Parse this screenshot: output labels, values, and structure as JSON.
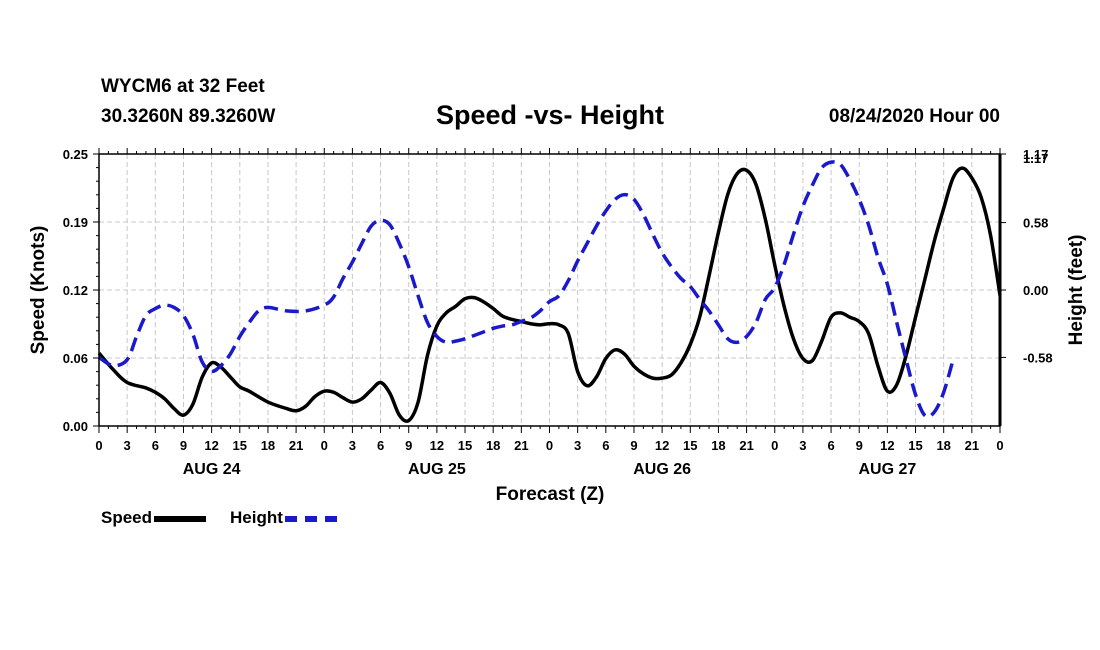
{
  "header": {
    "station": "WYCM6 at 32 Feet",
    "coords": "30.3260N 89.3260W",
    "title": "Speed -vs- Height",
    "datetime": "08/24/2020 Hour 00"
  },
  "chart_data": {
    "type": "line",
    "title": "Speed -vs- Height",
    "xlabel": "Forecast (Z)",
    "ylabel_left": "Speed (Knots)",
    "ylabel_right": "Height (feet)",
    "x_range_hours": [
      0,
      96
    ],
    "x_tick_labels": [
      "0",
      "3",
      "6",
      "9",
      "12",
      "15",
      "18",
      "21",
      "0",
      "3",
      "6",
      "9",
      "12",
      "15",
      "18",
      "21",
      "0",
      "3",
      "6",
      "9",
      "12",
      "15",
      "18",
      "21",
      "0",
      "3",
      "6",
      "9",
      "12",
      "15",
      "18",
      "21",
      "0"
    ],
    "day_labels": [
      {
        "hour": 12,
        "label": "AUG 24"
      },
      {
        "hour": 36,
        "label": "AUG 25"
      },
      {
        "hour": 60,
        "label": "AUG 26"
      },
      {
        "hour": 84,
        "label": "AUG 27"
      }
    ],
    "y_left": {
      "range": [
        0,
        0.25
      ],
      "ticks": [
        "0.00",
        "0.06",
        "0.12",
        "0.19",
        "0.25"
      ]
    },
    "y_right": {
      "range": [
        -1.17,
        1.17
      ],
      "ticks": [
        "-0.58",
        "0.00",
        "0.58",
        "1.17"
      ]
    },
    "grid": true,
    "series": [
      {
        "name": "Speed",
        "axis": "left",
        "color": "#000000",
        "dash": "solid",
        "points": [
          [
            0,
            0.067
          ],
          [
            1.5,
            0.052
          ],
          [
            3,
            0.04
          ],
          [
            5,
            0.035
          ],
          [
            6,
            0.031
          ],
          [
            7,
            0.025
          ],
          [
            8,
            0.016
          ],
          [
            9,
            0.01
          ],
          [
            10,
            0.02
          ],
          [
            11,
            0.045
          ],
          [
            12,
            0.058
          ],
          [
            13,
            0.054
          ],
          [
            14,
            0.045
          ],
          [
            15,
            0.036
          ],
          [
            16,
            0.032
          ],
          [
            18,
            0.022
          ],
          [
            20,
            0.016
          ],
          [
            21,
            0.014
          ],
          [
            22,
            0.018
          ],
          [
            23,
            0.027
          ],
          [
            24,
            0.032
          ],
          [
            25,
            0.031
          ],
          [
            26,
            0.026
          ],
          [
            27,
            0.022
          ],
          [
            28,
            0.025
          ],
          [
            29,
            0.033
          ],
          [
            30,
            0.04
          ],
          [
            31,
            0.03
          ],
          [
            32,
            0.01
          ],
          [
            33,
            0.005
          ],
          [
            34,
            0.022
          ],
          [
            35,
            0.065
          ],
          [
            36,
            0.092
          ],
          [
            37,
            0.104
          ],
          [
            38,
            0.11
          ],
          [
            39,
            0.117
          ],
          [
            40,
            0.118
          ],
          [
            41,
            0.114
          ],
          [
            42,
            0.108
          ],
          [
            43,
            0.101
          ],
          [
            44,
            0.098
          ],
          [
            45,
            0.096
          ],
          [
            46,
            0.094
          ],
          [
            47,
            0.093
          ],
          [
            48,
            0.094
          ],
          [
            49,
            0.093
          ],
          [
            50,
            0.085
          ],
          [
            51,
            0.05
          ],
          [
            52,
            0.037
          ],
          [
            53,
            0.045
          ],
          [
            54,
            0.062
          ],
          [
            55,
            0.07
          ],
          [
            56,
            0.066
          ],
          [
            57,
            0.055
          ],
          [
            58,
            0.048
          ],
          [
            59,
            0.044
          ],
          [
            60,
            0.044
          ],
          [
            61,
            0.047
          ],
          [
            62,
            0.058
          ],
          [
            63,
            0.075
          ],
          [
            64,
            0.1
          ],
          [
            65,
            0.138
          ],
          [
            66,
            0.178
          ],
          [
            67,
            0.213
          ],
          [
            68,
            0.232
          ],
          [
            69,
            0.235
          ],
          [
            70,
            0.222
          ],
          [
            71,
            0.19
          ],
          [
            72,
            0.148
          ],
          [
            73,
            0.11
          ],
          [
            74,
            0.08
          ],
          [
            75,
            0.062
          ],
          [
            76,
            0.06
          ],
          [
            77,
            0.078
          ],
          [
            78,
            0.1
          ],
          [
            79,
            0.104
          ],
          [
            80,
            0.1
          ],
          [
            81,
            0.096
          ],
          [
            82,
            0.085
          ],
          [
            83,
            0.055
          ],
          [
            84,
            0.032
          ],
          [
            85,
            0.038
          ],
          [
            86,
            0.065
          ],
          [
            87,
            0.1
          ],
          [
            88,
            0.135
          ],
          [
            89,
            0.17
          ],
          [
            90,
            0.2
          ],
          [
            91,
            0.228
          ],
          [
            92,
            0.237
          ],
          [
            93,
            0.228
          ],
          [
            94,
            0.21
          ],
          [
            95,
            0.175
          ],
          [
            96,
            0.12
          ]
        ]
      },
      {
        "name": "Height",
        "axis": "right",
        "color": "#1a1acc",
        "dash": "dashed",
        "points": [
          [
            0,
            -0.58
          ],
          [
            1.5,
            -0.65
          ],
          [
            3,
            -0.6
          ],
          [
            4,
            -0.4
          ],
          [
            5,
            -0.22
          ],
          [
            6,
            -0.16
          ],
          [
            7,
            -0.13
          ],
          [
            8,
            -0.15
          ],
          [
            9,
            -0.22
          ],
          [
            10,
            -0.38
          ],
          [
            11,
            -0.62
          ],
          [
            12,
            -0.7
          ],
          [
            13,
            -0.65
          ],
          [
            14,
            -0.55
          ],
          [
            15,
            -0.4
          ],
          [
            16,
            -0.28
          ],
          [
            17,
            -0.18
          ],
          [
            18,
            -0.15
          ],
          [
            20,
            -0.18
          ],
          [
            22,
            -0.18
          ],
          [
            24,
            -0.13
          ],
          [
            25,
            -0.06
          ],
          [
            26,
            0.1
          ],
          [
            27,
            0.24
          ],
          [
            28,
            0.4
          ],
          [
            29,
            0.55
          ],
          [
            30,
            0.6
          ],
          [
            31,
            0.56
          ],
          [
            32,
            0.4
          ],
          [
            33,
            0.2
          ],
          [
            34,
            -0.05
          ],
          [
            35,
            -0.28
          ],
          [
            36,
            -0.4
          ],
          [
            37,
            -0.45
          ],
          [
            38,
            -0.44
          ],
          [
            39,
            -0.42
          ],
          [
            40,
            -0.39
          ],
          [
            41,
            -0.36
          ],
          [
            42,
            -0.33
          ],
          [
            43,
            -0.31
          ],
          [
            44,
            -0.3
          ],
          [
            45,
            -0.27
          ],
          [
            46,
            -0.24
          ],
          [
            47,
            -0.18
          ],
          [
            48,
            -0.1
          ],
          [
            49,
            -0.05
          ],
          [
            50,
            0.08
          ],
          [
            51,
            0.25
          ],
          [
            52,
            0.4
          ],
          [
            53,
            0.55
          ],
          [
            54,
            0.68
          ],
          [
            55,
            0.78
          ],
          [
            56,
            0.82
          ],
          [
            57,
            0.78
          ],
          [
            58,
            0.65
          ],
          [
            59,
            0.48
          ],
          [
            60,
            0.32
          ],
          [
            61,
            0.2
          ],
          [
            62,
            0.1
          ],
          [
            63,
            0.03
          ],
          [
            64,
            -0.08
          ],
          [
            65,
            -0.18
          ],
          [
            66,
            -0.3
          ],
          [
            67,
            -0.42
          ],
          [
            68,
            -0.45
          ],
          [
            69,
            -0.4
          ],
          [
            70,
            -0.28
          ],
          [
            71,
            -0.08
          ],
          [
            72,
            0.02
          ],
          [
            73,
            0.22
          ],
          [
            74,
            0.48
          ],
          [
            75,
            0.72
          ],
          [
            76,
            0.9
          ],
          [
            77,
            1.05
          ],
          [
            78,
            1.1
          ],
          [
            79,
            1.08
          ],
          [
            80,
            0.95
          ],
          [
            81,
            0.78
          ],
          [
            82,
            0.56
          ],
          [
            83,
            0.28
          ],
          [
            84,
            0.05
          ],
          [
            85,
            -0.28
          ],
          [
            86,
            -0.6
          ],
          [
            87,
            -0.9
          ],
          [
            88,
            -1.08
          ],
          [
            89,
            -1.05
          ],
          [
            90,
            -0.88
          ],
          [
            91,
            -0.6
          ]
        ]
      }
    ],
    "legend": [
      {
        "label": "Speed",
        "color": "#000000"
      },
      {
        "label": "Height",
        "color": "#1a1acc"
      }
    ]
  }
}
